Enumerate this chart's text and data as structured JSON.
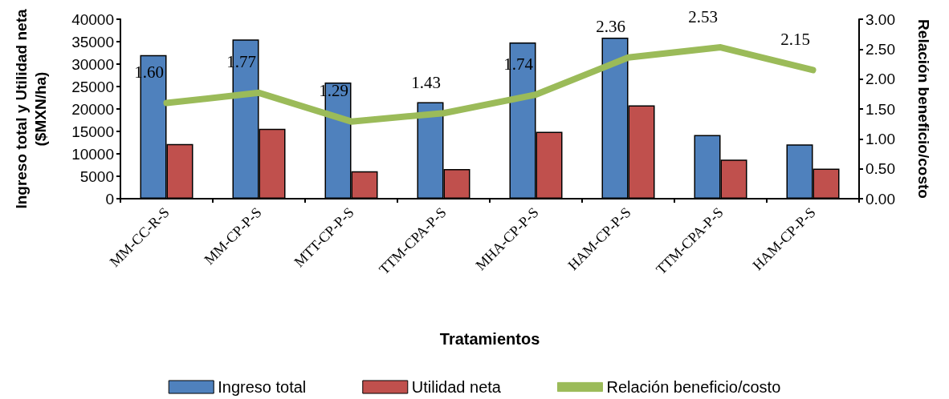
{
  "chart_data": {
    "type": "bar",
    "xlabel": "Tratamientos",
    "ylabel": "Ingreso total y Utilidad neta ($MXN/ha)",
    "y2label": "Relación beneficio/costo",
    "categories": [
      "MM-CC-R-S",
      "MM-CP-P-S",
      "MTT-CP-P-S",
      "TTM-CPA-P-S",
      "MHA-CP-P-S",
      "HAM-CP-P-S",
      "TTM-CPA-P-S",
      "HAM-CP-P-S"
    ],
    "series": [
      {
        "name": "Ingreso total",
        "color": "#4f81bd",
        "values": [
          32000,
          35500,
          25900,
          21500,
          34800,
          35900,
          14200,
          12100
        ]
      },
      {
        "name": "Utilidad neta",
        "color": "#c0504d",
        "values": [
          12200,
          15600,
          6100,
          6600,
          14900,
          20800,
          8700,
          6700
        ]
      },
      {
        "name": "Relación beneficio/costo",
        "type": "line",
        "axis": "y2",
        "color": "#9bbb59",
        "values": [
          1.6,
          1.77,
          1.29,
          1.43,
          1.74,
          2.36,
          2.53,
          2.15
        ],
        "value_labels": [
          "1.60",
          "1.77",
          "1.29",
          "1.43",
          "1.74",
          "2.36",
          "2.53",
          "2.15"
        ]
      }
    ],
    "ylim": [
      0,
      40000
    ],
    "yticks": [
      0,
      5000,
      10000,
      15000,
      20000,
      25000,
      30000,
      35000,
      40000
    ],
    "y2lim": [
      0,
      3
    ],
    "y2ticks": [
      {
        "value": 0,
        "label": "0.00"
      },
      {
        "value": 0.5,
        "label": "0.50"
      },
      {
        "value": 1,
        "label": "1.00"
      },
      {
        "value": 1.5,
        "label": "1.50"
      },
      {
        "value": 2,
        "label": "2.00"
      },
      {
        "value": 2.5,
        "label": "2.50"
      },
      {
        "value": 3,
        "label": "3.00"
      }
    ],
    "grid": false,
    "legend": "bottom",
    "marker": "none",
    "line_style": "solid"
  }
}
